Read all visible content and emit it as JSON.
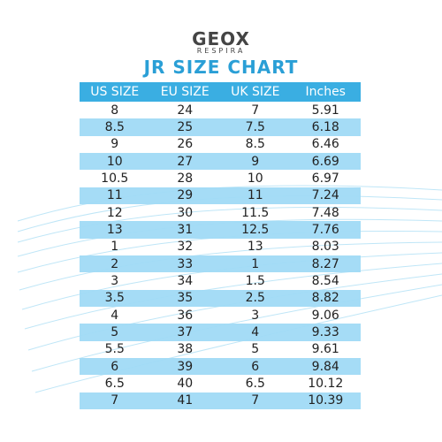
{
  "header": {
    "logo": "GEOX",
    "sub": "RESPIRA"
  },
  "title": "JR SIZE CHART",
  "table": {
    "columns": [
      "US SIZE",
      "EU SIZE",
      "UK SIZE",
      "Inches"
    ],
    "rows": [
      [
        "8",
        "24",
        "7",
        "5.91"
      ],
      [
        "8.5",
        "25",
        "7.5",
        "6.18"
      ],
      [
        "9",
        "26",
        "8.5",
        "6.46"
      ],
      [
        "10",
        "27",
        "9",
        "6.69"
      ],
      [
        "10.5",
        "28",
        "10",
        "6.97"
      ],
      [
        "11",
        "29",
        "11",
        "7.24"
      ],
      [
        "12",
        "30",
        "11.5",
        "7.48"
      ],
      [
        "13",
        "31",
        "12.5",
        "7.76"
      ],
      [
        "1",
        "32",
        "13",
        "8.03"
      ],
      [
        "2",
        "33",
        "1",
        "8.27"
      ],
      [
        "3",
        "34",
        "1.5",
        "8.54"
      ],
      [
        "3.5",
        "35",
        "2.5",
        "8.82"
      ],
      [
        "4",
        "36",
        "3",
        "9.06"
      ],
      [
        "5",
        "37",
        "4",
        "9.33"
      ],
      [
        "5.5",
        "38",
        "5",
        "9.61"
      ],
      [
        "6",
        "39",
        "6",
        "9.84"
      ],
      [
        "6.5",
        "40",
        "6.5",
        "10.12"
      ],
      [
        "7",
        "41",
        "7",
        "10.39"
      ]
    ]
  }
}
